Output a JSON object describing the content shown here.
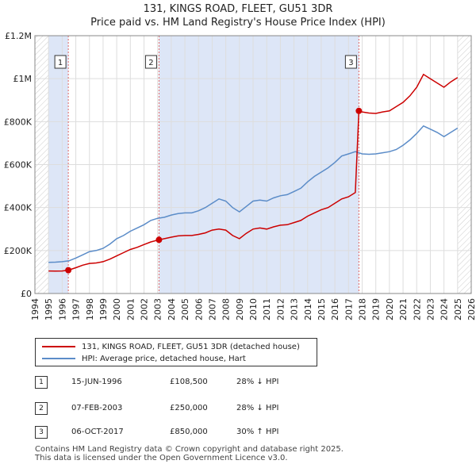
{
  "header": {
    "title": "131, KINGS ROAD, FLEET, GU51 3DR",
    "subtitle": "Price paid vs. HM Land Registry's House Price Index (HPI)"
  },
  "chart_data": {
    "type": "line",
    "title": "131, KINGS ROAD, FLEET, GU51 3DR",
    "subtitle": "Price paid vs. HM Land Registry's House Price Index (HPI)",
    "xlabel": "",
    "ylabel": "",
    "xlim": [
      1994,
      2026
    ],
    "ylim": [
      0,
      1200000
    ],
    "x_ticks": [
      "1994",
      "1995",
      "1996",
      "1997",
      "1998",
      "1999",
      "2000",
      "2001",
      "2002",
      "2003",
      "2004",
      "2005",
      "2006",
      "2007",
      "2008",
      "2009",
      "2010",
      "2011",
      "2012",
      "2013",
      "2014",
      "2015",
      "2016",
      "2017",
      "2018",
      "2019",
      "2020",
      "2021",
      "2022",
      "2023",
      "2024",
      "2025",
      "2026"
    ],
    "y_ticks": [
      {
        "value": 0,
        "label": "£0"
      },
      {
        "value": 200000,
        "label": "£200K"
      },
      {
        "value": 400000,
        "label": "£400K"
      },
      {
        "value": 600000,
        "label": "£600K"
      },
      {
        "value": 800000,
        "label": "£800K"
      },
      {
        "value": 1000000,
        "label": "£1M"
      },
      {
        "value": 1200000,
        "label": "£1.2M"
      }
    ],
    "data_range_start": 1995,
    "data_range_end": 2025.0,
    "shaded_bands": [
      [
        1995,
        1996.45
      ],
      [
        2003.1,
        2017.76
      ]
    ],
    "series": [
      {
        "name": "131, KINGS ROAD, FLEET, GU51 3DR (detached house)",
        "color": "#cc0000",
        "x": [
          1995.0,
          1995.5,
          1996.0,
          1996.45,
          1997.0,
          1997.5,
          1998.0,
          1998.5,
          1999.0,
          1999.5,
          2000.0,
          2000.5,
          2001.0,
          2001.5,
          2002.0,
          2002.5,
          2003.1,
          2003.5,
          2004.0,
          2004.5,
          2005.0,
          2005.5,
          2006.0,
          2006.5,
          2007.0,
          2007.5,
          2008.0,
          2008.5,
          2009.0,
          2009.5,
          2010.0,
          2010.5,
          2011.0,
          2011.5,
          2012.0,
          2012.5,
          2013.0,
          2013.5,
          2014.0,
          2014.5,
          2015.0,
          2015.5,
          2016.0,
          2016.5,
          2017.0,
          2017.5,
          2017.76,
          2018.0,
          2018.5,
          2019.0,
          2019.5,
          2020.0,
          2020.5,
          2021.0,
          2021.5,
          2022.0,
          2022.5,
          2023.0,
          2023.5,
          2024.0,
          2024.5,
          2025.0
        ],
        "y": [
          105000,
          104000,
          105000,
          108500,
          120000,
          132000,
          140000,
          142000,
          148000,
          160000,
          175000,
          190000,
          205000,
          215000,
          228000,
          240000,
          250000,
          255000,
          262000,
          268000,
          270000,
          270000,
          275000,
          282000,
          295000,
          300000,
          295000,
          270000,
          255000,
          280000,
          300000,
          305000,
          300000,
          310000,
          318000,
          320000,
          330000,
          340000,
          360000,
          375000,
          390000,
          400000,
          420000,
          440000,
          450000,
          470000,
          850000,
          845000,
          840000,
          838000,
          845000,
          850000,
          870000,
          890000,
          920000,
          960000,
          1020000,
          1000000,
          980000,
          960000,
          985000,
          1005000
        ]
      },
      {
        "name": "HPI: Average price, detached house, Hart",
        "color": "#5b8cc8",
        "x": [
          1995.0,
          1995.5,
          1996.0,
          1996.5,
          1997.0,
          1997.5,
          1998.0,
          1998.5,
          1999.0,
          1999.5,
          2000.0,
          2000.5,
          2001.0,
          2001.5,
          2002.0,
          2002.5,
          2003.0,
          2003.5,
          2004.0,
          2004.5,
          2005.0,
          2005.5,
          2006.0,
          2006.5,
          2007.0,
          2007.5,
          2008.0,
          2008.5,
          2009.0,
          2009.5,
          2010.0,
          2010.5,
          2011.0,
          2011.5,
          2012.0,
          2012.5,
          2013.0,
          2013.5,
          2014.0,
          2014.5,
          2015.0,
          2015.5,
          2016.0,
          2016.5,
          2017.0,
          2017.5,
          2018.0,
          2018.5,
          2019.0,
          2019.5,
          2020.0,
          2020.5,
          2021.0,
          2021.5,
          2022.0,
          2022.5,
          2023.0,
          2023.5,
          2024.0,
          2024.5,
          2025.0
        ],
        "y": [
          145000,
          146000,
          148000,
          152000,
          165000,
          180000,
          195000,
          200000,
          210000,
          230000,
          255000,
          270000,
          290000,
          305000,
          320000,
          340000,
          350000,
          355000,
          365000,
          372000,
          375000,
          375000,
          385000,
          400000,
          420000,
          440000,
          430000,
          400000,
          380000,
          405000,
          430000,
          435000,
          430000,
          445000,
          455000,
          460000,
          475000,
          490000,
          520000,
          545000,
          565000,
          585000,
          610000,
          640000,
          650000,
          660000,
          650000,
          648000,
          650000,
          655000,
          660000,
          670000,
          690000,
          715000,
          745000,
          780000,
          765000,
          750000,
          730000,
          750000,
          770000
        ]
      }
    ],
    "sales": [
      {
        "label": "1",
        "x": 1996.45,
        "y": 108500
      },
      {
        "label": "2",
        "x": 2003.1,
        "y": 250000
      },
      {
        "label": "3",
        "x": 2017.76,
        "y": 850000
      }
    ]
  },
  "legend": {
    "property": "131, KINGS ROAD, FLEET, GU51 3DR (detached house)",
    "hpi": "HPI: Average price, detached house, Hart",
    "property_color": "#cc0000",
    "hpi_color": "#5b8cc8"
  },
  "sales_table": [
    {
      "num": "1",
      "date": "15-JUN-1996",
      "price": "£108,500",
      "hpi": "28% ↓ HPI"
    },
    {
      "num": "2",
      "date": "07-FEB-2003",
      "price": "£250,000",
      "hpi": "28% ↓ HPI"
    },
    {
      "num": "3",
      "date": "06-OCT-2017",
      "price": "£850,000",
      "hpi": "30% ↑ HPI"
    }
  ],
  "footer": {
    "line1": "Contains HM Land Registry data © Crown copyright and database right 2025.",
    "line2": "This data is licensed under the Open Government Licence v3.0."
  }
}
